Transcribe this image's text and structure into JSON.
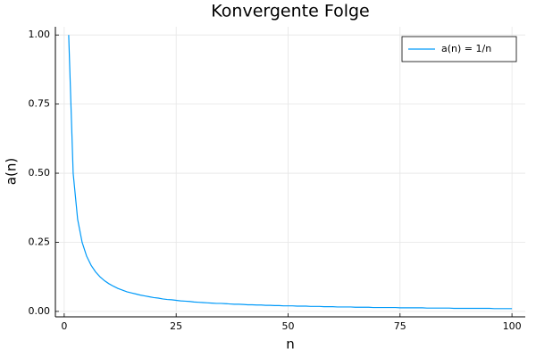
{
  "chart_data": {
    "type": "line",
    "title": "Konvergente Folge",
    "x_label": "n",
    "y_label": "a(n)",
    "x": [
      1,
      2,
      3,
      4,
      5,
      6,
      7,
      8,
      9,
      10,
      11,
      12,
      13,
      14,
      15,
      16,
      17,
      18,
      19,
      20,
      21,
      22,
      23,
      24,
      25,
      26,
      27,
      28,
      29,
      30,
      31,
      32,
      33,
      34,
      35,
      36,
      37,
      38,
      39,
      40,
      41,
      42,
      43,
      44,
      45,
      46,
      47,
      48,
      49,
      50,
      51,
      52,
      53,
      54,
      55,
      56,
      57,
      58,
      59,
      60,
      61,
      62,
      63,
      64,
      65,
      66,
      67,
      68,
      69,
      70,
      71,
      72,
      73,
      74,
      75,
      76,
      77,
      78,
      79,
      80,
      81,
      82,
      83,
      84,
      85,
      86,
      87,
      88,
      89,
      90,
      91,
      92,
      93,
      94,
      95,
      96,
      97,
      98,
      99,
      100
    ],
    "series": [
      {
        "name": "a(n) = 1/n",
        "color": "#009af9",
        "values": [
          1,
          0.5,
          0.333,
          0.25,
          0.2,
          0.167,
          0.143,
          0.125,
          0.111,
          0.1,
          0.091,
          0.083,
          0.077,
          0.071,
          0.067,
          0.063,
          0.059,
          0.056,
          0.053,
          0.05,
          0.048,
          0.045,
          0.043,
          0.042,
          0.04,
          0.038,
          0.037,
          0.036,
          0.034,
          0.033,
          0.032,
          0.031,
          0.03,
          0.029,
          0.029,
          0.028,
          0.027,
          0.026,
          0.026,
          0.025,
          0.024,
          0.024,
          0.023,
          0.023,
          0.022,
          0.022,
          0.021,
          0.021,
          0.02,
          0.02,
          0.02,
          0.019,
          0.019,
          0.019,
          0.018,
          0.018,
          0.018,
          0.017,
          0.017,
          0.017,
          0.016,
          0.016,
          0.016,
          0.016,
          0.015,
          0.015,
          0.015,
          0.015,
          0.014,
          0.014,
          0.014,
          0.014,
          0.014,
          0.014,
          0.013,
          0.013,
          0.013,
          0.013,
          0.013,
          0.013,
          0.012,
          0.012,
          0.012,
          0.012,
          0.012,
          0.012,
          0.011,
          0.011,
          0.011,
          0.011,
          0.011,
          0.011,
          0.011,
          0.011,
          0.011,
          0.01,
          0.01,
          0.01,
          0.01,
          0.01
        ]
      }
    ],
    "xlim": [
      -1.97,
      102.97
    ],
    "xticks": [
      0,
      25,
      50,
      75,
      100
    ],
    "ylim": [
      -0.0197,
      1.0297
    ],
    "yticks": [
      {
        "value": 0,
        "label": "0.00"
      },
      {
        "value": 0.25,
        "label": "0.25"
      },
      {
        "value": 0.5,
        "label": "0.50"
      },
      {
        "value": 0.75,
        "label": "0.75"
      },
      {
        "value": 1,
        "label": "1.00"
      }
    ],
    "grid": true,
    "legend": "top-right"
  }
}
